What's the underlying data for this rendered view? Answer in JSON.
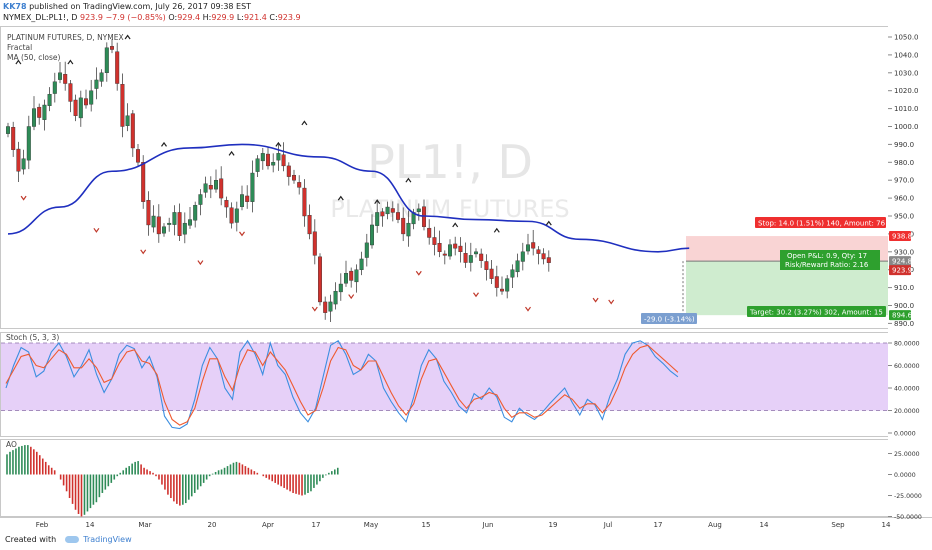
{
  "header": {
    "author": "KK78",
    "published": "published on TradingView.com, July 26, 2017 09:38 EST",
    "symbol": "NYMEX_DL:PL1!, D",
    "last": "923.9",
    "change": "−7.9 (−0.85%)",
    "open_label": "O:",
    "open": "929.4",
    "high_label": "H:",
    "high": "929.9",
    "low_label": "L:",
    "low": "921.4",
    "close_label": "C:",
    "close": "923.9"
  },
  "legend": {
    "title": "PLATINUM FUTURES, D, NYMEX",
    "fractal": "Fractal",
    "ma": "MA (50, close)"
  },
  "watermark": {
    "ticker": "PL1!, D",
    "name": "PLATINUM FUTURES"
  },
  "footer": {
    "created_with": "Created with",
    "brand": "TradingView"
  },
  "colors": {
    "up": "#2e8b57",
    "down": "#d0312d",
    "ma": "#1f2fbf",
    "stoch_k": "#3c8ee0",
    "stoch_d": "#ef5a2f",
    "stoch_band": "#e2c8f7",
    "stop": "#ef2f2f",
    "target": "#2ea02e",
    "measure": "#7b9fd0"
  },
  "chart_data": [
    {
      "type": "candlestick",
      "title": "PLATINUM FUTURES, D, NYMEX",
      "ylim": [
        885,
        1055
      ],
      "y_ticks": [
        "1050.0",
        "1040.0",
        "1030.0",
        "1020.0",
        "1010.0",
        "1000.0",
        "990.0",
        "980.0",
        "970.0",
        "960.0",
        "950.0",
        "940.0",
        "930.0",
        "920.0",
        "910.0",
        "900.0",
        "890.0"
      ],
      "x_ticks": [
        "Feb",
        "14",
        "Mar",
        "20",
        "Apr",
        "17",
        "May",
        "15",
        "Jun",
        "19",
        "Jul",
        "17",
        "Aug",
        "14",
        "Sep",
        "14"
      ],
      "closes": [
        1000,
        987,
        975,
        982,
        1000,
        1010,
        1005,
        1012,
        1018,
        1025,
        1030,
        1024,
        1014,
        1006,
        1016,
        1012,
        1020,
        1026,
        1030,
        1044,
        1043,
        1024,
        1000,
        1006,
        988,
        980,
        958,
        945,
        950,
        940,
        944,
        946,
        952,
        939,
        946,
        948,
        956,
        962,
        968,
        965,
        970,
        960,
        955,
        946,
        954,
        962,
        958,
        974,
        982,
        985,
        978,
        980,
        985,
        978,
        972,
        970,
        966,
        950,
        940,
        928,
        902,
        896,
        902,
        908,
        912,
        918,
        914,
        920,
        926,
        935,
        945,
        952,
        950,
        955,
        952,
        948,
        940,
        946,
        952,
        954,
        944,
        938,
        934,
        930,
        928,
        934,
        932,
        930,
        924,
        928,
        930,
        925,
        920,
        915,
        910,
        908,
        915,
        920,
        925,
        930,
        934,
        932,
        929,
        926,
        923.9
      ],
      "ma_points": [
        [
          0,
          940
        ],
        [
          10,
          955
        ],
        [
          20,
          975
        ],
        [
          35,
          988
        ],
        [
          45,
          990
        ],
        [
          60,
          983
        ],
        [
          70,
          975
        ],
        [
          80,
          950
        ],
        [
          90,
          948
        ],
        [
          100,
          947
        ],
        [
          110,
          937
        ],
        [
          125,
          930
        ],
        [
          131,
          932
        ]
      ],
      "fractals_up": [
        [
          2,
          1036
        ],
        [
          12,
          1036
        ],
        [
          23,
          1050
        ],
        [
          30,
          990
        ],
        [
          43,
          985
        ],
        [
          52,
          990
        ],
        [
          57,
          1002
        ],
        [
          64,
          960
        ],
        [
          71,
          958
        ],
        [
          77,
          970
        ],
        [
          86,
          945
        ],
        [
          94,
          942
        ],
        [
          104,
          946
        ]
      ],
      "fractals_down": [
        [
          3,
          960
        ],
        [
          17,
          942
        ],
        [
          26,
          930
        ],
        [
          37,
          924
        ],
        [
          45,
          940
        ],
        [
          59,
          898
        ],
        [
          66,
          905
        ],
        [
          79,
          918
        ],
        [
          90,
          906
        ],
        [
          100,
          898
        ],
        [
          113,
          903
        ],
        [
          116,
          902
        ]
      ],
      "last_price": "923.9",
      "position": {
        "stop_price": "938.8",
        "entry_price": "924.8",
        "target_price": "894.6",
        "stop_label": "Stop: 14.0 (1.51%) 140, Amount: 76",
        "pnl_label": "Open P&L: 0.9, Qty: 17",
        "rr_label": "Risk/Reward Ratio: 2.16",
        "target_label": "Target: 30.2 (3.27%) 302, Amount: 15",
        "measure_label": "-29.0 (-3.14%) -290"
      }
    },
    {
      "type": "line",
      "title": "Stoch (5, 3, 3)",
      "ylim": [
        0,
        90
      ],
      "y_ticks": [
        "80.0000",
        "60.0000",
        "40.0000",
        "20.0000",
        "0.0000"
      ],
      "band": [
        20,
        80
      ],
      "series": [
        {
          "values": [
            40,
            60,
            76,
            72,
            50,
            55,
            72,
            80,
            68,
            50,
            60,
            74,
            52,
            36,
            48,
            70,
            78,
            75,
            58,
            68,
            50,
            15,
            5,
            4,
            8,
            30,
            60,
            76,
            66,
            40,
            30,
            72,
            82,
            70,
            52,
            80,
            60,
            52,
            32,
            18,
            10,
            22,
            50,
            78,
            82,
            70,
            52,
            56,
            70,
            64,
            40,
            28,
            18,
            10,
            32,
            60,
            74,
            66,
            46,
            36,
            24,
            18,
            35,
            30,
            40,
            32,
            14,
            10,
            22,
            16,
            12,
            18,
            26,
            33,
            40,
            27,
            16,
            30,
            25,
            12,
            33,
            48,
            70,
            80,
            82,
            78,
            68,
            62,
            55,
            50
          ]
        },
        {
          "values": [
            44,
            56,
            68,
            70,
            60,
            58,
            66,
            74,
            70,
            58,
            58,
            66,
            58,
            45,
            48,
            62,
            72,
            74,
            64,
            62,
            52,
            28,
            12,
            7,
            10,
            22,
            46,
            66,
            66,
            50,
            38,
            60,
            74,
            72,
            60,
            72,
            64,
            56,
            42,
            28,
            16,
            20,
            40,
            64,
            76,
            74,
            60,
            56,
            64,
            64,
            50,
            36,
            24,
            16,
            26,
            48,
            64,
            66,
            54,
            42,
            30,
            22,
            30,
            32,
            36,
            34,
            22,
            14,
            18,
            18,
            14,
            16,
            22,
            28,
            34,
            30,
            22,
            26,
            26,
            18,
            26,
            40,
            58,
            70,
            76,
            78,
            72,
            66,
            60,
            54
          ]
        }
      ]
    },
    {
      "type": "bar",
      "title": "AO",
      "ylim": [
        -55,
        32
      ],
      "y_ticks": [
        "25.0000",
        "0.0000",
        "-25.0000",
        "-50.0000"
      ],
      "values": [
        24,
        27,
        29,
        31,
        33,
        34,
        35,
        35,
        33,
        30,
        27,
        23,
        19,
        15,
        11,
        8,
        5,
        0,
        -6,
        -13,
        -20,
        -28,
        -35,
        -42,
        -47,
        -50,
        -48,
        -44,
        -40,
        -36,
        -33,
        -27,
        -22,
        -18,
        -14,
        -10,
        -6,
        -2,
        2,
        5,
        8,
        10,
        13,
        15,
        16,
        12,
        8,
        6,
        4,
        2,
        -2,
        -6,
        -12,
        -18,
        -24,
        -28,
        -32,
        -35,
        -37,
        -36,
        -34,
        -30,
        -26,
        -22,
        -18,
        -14,
        -10,
        -6,
        -2,
        1,
        3,
        5,
        6,
        8,
        10,
        12,
        14,
        15,
        14,
        12,
        10,
        8,
        6,
        4,
        2,
        0,
        -2,
        -4,
        -6,
        -8,
        -10,
        -12,
        -14,
        -16,
        -18,
        -20,
        -22,
        -23,
        -24,
        -25,
        -24,
        -22,
        -20,
        -16,
        -12,
        -8,
        -4,
        -1,
        2,
        4,
        6,
        8
      ]
    }
  ]
}
